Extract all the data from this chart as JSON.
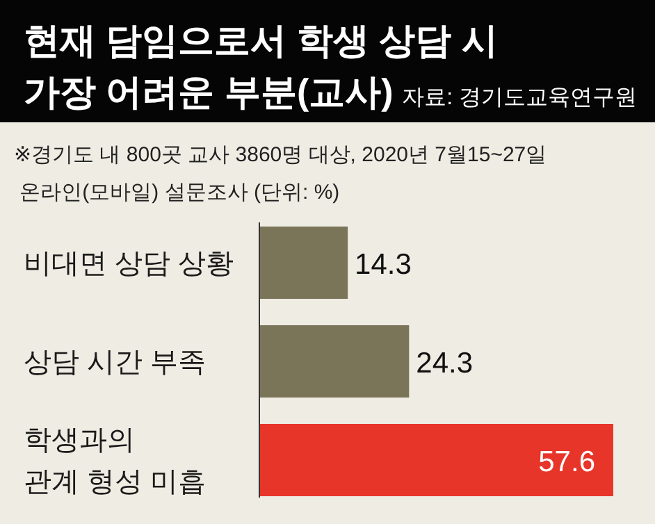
{
  "chart_data": {
    "type": "bar",
    "orientation": "horizontal",
    "title": "현재 담임으로서 학생 상담 시\n가장 어려운 부분(교사)",
    "subtitle": "※경기도 내 800곳 교사 3860명 대상, 2020년 7월15~27일\n  온라인(모바일) 설문조사  (단위: %)",
    "annotations": [
      "자료: 경기도교육연구원"
    ],
    "categories": [
      "비대면 상담 상황",
      "상담 시간 부족",
      "학생과의\n관계 형성 미흡"
    ],
    "values": [
      14.3,
      24.3,
      57.6
    ],
    "colors": [
      "#7a7459",
      "#7a7459",
      "#e8352a"
    ],
    "data_labels": true
  }
}
